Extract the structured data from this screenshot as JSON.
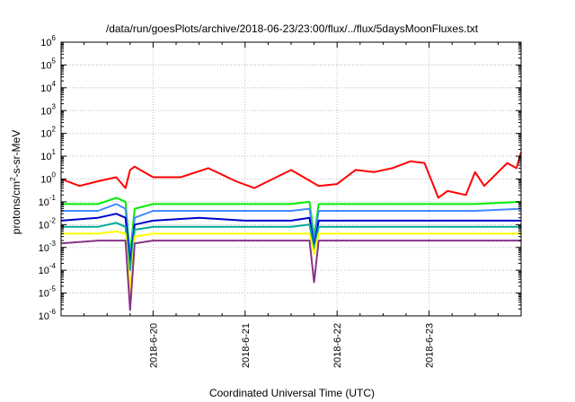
{
  "chart_data": {
    "type": "line",
    "title": "/data/run/goesPlots/archive/2018-06-23/23:00/flux/../flux/5daysMoonFluxes.txt",
    "xlabel": "Coordinated Universal Time (UTC)",
    "ylabel_parts": {
      "base": "protons/cm",
      "exp": "2",
      "rest": "-s-sr-MeV"
    },
    "ylabel": "protons/cm²-s-sr-MeV",
    "yscale": "log",
    "ylim": [
      1e-06,
      1000000.0
    ],
    "y_ticks": [
      {
        "base": "10",
        "exp": "-6",
        "value": 1e-06
      },
      {
        "base": "10",
        "exp": "-5",
        "value": 1e-05
      },
      {
        "base": "10",
        "exp": "-4",
        "value": 0.0001
      },
      {
        "base": "10",
        "exp": "-3",
        "value": 0.001
      },
      {
        "base": "10",
        "exp": "-2",
        "value": 0.01
      },
      {
        "base": "10",
        "exp": "-1",
        "value": 0.1
      },
      {
        "base": "10",
        "exp": "0",
        "value": 1
      },
      {
        "base": "10",
        "exp": "1",
        "value": 10
      },
      {
        "base": "10",
        "exp": "2",
        "value": 100
      },
      {
        "base": "10",
        "exp": "3",
        "value": 1000
      },
      {
        "base": "10",
        "exp": "4",
        "value": 10000
      },
      {
        "base": "10",
        "exp": "5",
        "value": 100000
      },
      {
        "base": "10",
        "exp": "6",
        "value": 1000000
      }
    ],
    "xlim": [
      "2018-06-19 00:00",
      "2018-06-24 00:00"
    ],
    "x_ticks": [
      "2018-6-20",
      "2018-6-21",
      "2018-6-22",
      "2018-6-23"
    ],
    "grid": true,
    "series": [
      {
        "color": "#ff0000",
        "x": [
          0.0,
          0.2,
          0.4,
          0.6,
          0.7,
          0.75,
          0.8,
          1.0,
          1.3,
          1.6,
          1.9,
          2.1,
          2.5,
          2.8,
          3.0,
          3.2,
          3.4,
          3.6,
          3.8,
          3.95,
          4.05,
          4.1,
          4.2,
          4.4,
          4.5,
          4.6,
          4.75,
          4.85,
          4.95,
          5.0
        ],
        "values": [
          1.0,
          0.5,
          0.8,
          1.2,
          0.4,
          2.5,
          3.5,
          1.2,
          1.2,
          3.0,
          0.8,
          0.4,
          2.5,
          0.5,
          0.6,
          2.5,
          2.0,
          3.0,
          6.0,
          5.0,
          0.5,
          0.15,
          0.3,
          0.2,
          2.0,
          0.5,
          2.0,
          5.0,
          3.0,
          15.0
        ]
      },
      {
        "color": "#00ee00",
        "x": [
          0.0,
          0.4,
          0.6,
          0.7,
          0.75,
          0.8,
          1.0,
          1.5,
          2.0,
          2.5,
          2.7,
          2.75,
          2.8,
          3.0,
          3.5,
          4.0,
          4.5,
          5.0
        ],
        "values": [
          0.08,
          0.08,
          0.15,
          0.1,
          0.0005,
          0.05,
          0.08,
          0.08,
          0.08,
          0.08,
          0.1,
          0.003,
          0.08,
          0.08,
          0.08,
          0.08,
          0.08,
          0.1
        ]
      },
      {
        "color": "#4488ff",
        "x": [
          0.0,
          0.4,
          0.6,
          0.7,
          0.75,
          0.8,
          1.0,
          1.5,
          2.0,
          2.5,
          2.7,
          2.75,
          2.8,
          3.0,
          3.5,
          4.0,
          4.5,
          5.0
        ],
        "values": [
          0.04,
          0.04,
          0.08,
          0.05,
          0.0003,
          0.02,
          0.04,
          0.04,
          0.04,
          0.04,
          0.05,
          0.002,
          0.04,
          0.04,
          0.04,
          0.04,
          0.04,
          0.05
        ]
      },
      {
        "color": "#0000cc",
        "x": [
          0.0,
          0.4,
          0.6,
          0.7,
          0.75,
          0.8,
          1.0,
          1.5,
          2.0,
          2.5,
          2.7,
          2.75,
          2.8,
          3.0,
          3.5,
          4.0,
          4.5,
          5.0
        ],
        "values": [
          0.015,
          0.02,
          0.03,
          0.02,
          0.0002,
          0.01,
          0.015,
          0.02,
          0.015,
          0.015,
          0.02,
          0.001,
          0.015,
          0.015,
          0.015,
          0.015,
          0.015,
          0.015
        ]
      },
      {
        "color": "#00aa99",
        "x": [
          0.0,
          0.4,
          0.6,
          0.7,
          0.75,
          0.8,
          1.0,
          1.5,
          2.0,
          2.5,
          2.7,
          2.75,
          2.8,
          3.0,
          3.5,
          4.0,
          4.5,
          5.0
        ],
        "values": [
          0.008,
          0.008,
          0.012,
          0.008,
          0.0001,
          0.006,
          0.008,
          0.008,
          0.008,
          0.008,
          0.01,
          0.0008,
          0.008,
          0.008,
          0.008,
          0.008,
          0.008,
          0.008
        ]
      },
      {
        "color": "#ffff00",
        "x": [
          0.0,
          0.4,
          0.6,
          0.7,
          0.75,
          0.8,
          1.0,
          1.5,
          2.0,
          2.5,
          2.7,
          2.75,
          2.8,
          3.0,
          3.5,
          4.0,
          4.5,
          5.0
        ],
        "values": [
          0.004,
          0.004,
          0.005,
          0.004,
          1e-05,
          0.003,
          0.004,
          0.004,
          0.004,
          0.004,
          0.004,
          0.0005,
          0.004,
          0.004,
          0.004,
          0.004,
          0.004,
          0.004
        ]
      },
      {
        "color": "#883388",
        "x": [
          0.0,
          0.4,
          0.6,
          0.7,
          0.75,
          0.8,
          1.0,
          1.5,
          2.0,
          2.5,
          2.7,
          2.75,
          2.8,
          3.0,
          3.5,
          4.0,
          4.5,
          5.0
        ],
        "values": [
          0.0015,
          0.002,
          0.002,
          0.002,
          1.8e-06,
          0.0015,
          0.002,
          0.002,
          0.002,
          0.002,
          0.002,
          3e-05,
          0.002,
          0.002,
          0.002,
          0.002,
          0.002,
          0.002
        ]
      }
    ]
  }
}
